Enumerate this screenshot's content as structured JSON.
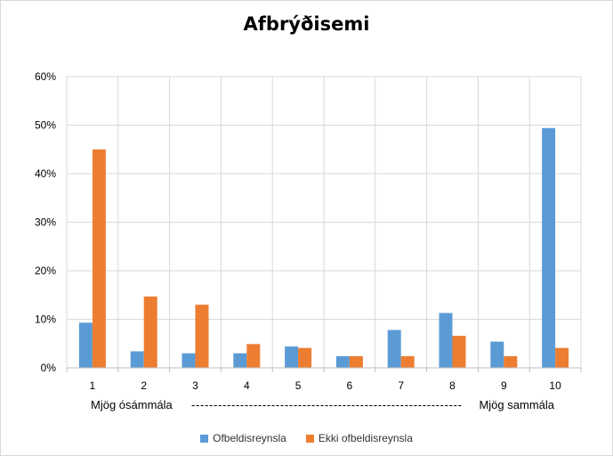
{
  "chart_data": {
    "type": "bar",
    "title": "Afbrýðisemi",
    "categories": [
      "1",
      "2",
      "3",
      "4",
      "5",
      "6",
      "7",
      "8",
      "9",
      "10"
    ],
    "series": [
      {
        "name": "Ofbeldisreynsla",
        "color": "#5b9bd5",
        "values": [
          9.3,
          3.4,
          3.0,
          3.0,
          4.4,
          2.4,
          7.8,
          11.3,
          5.4,
          49.4
        ]
      },
      {
        "name": "Ekki ofbeldisreynsla",
        "color": "#ed7d31",
        "values": [
          45.0,
          14.7,
          13.0,
          4.9,
          4.1,
          2.4,
          2.4,
          6.6,
          2.4,
          4.1
        ]
      }
    ],
    "ylim": [
      0,
      60
    ],
    "yticks": [
      "0%",
      "10%",
      "20%",
      "30%",
      "40%",
      "50%",
      "60%"
    ],
    "grid": true,
    "legend": "bottom-center",
    "scale_left_label": "Mjög ósámmála",
    "scale_right_label": "Mjög sammála",
    "scale_dashes": "-------------------------------------------------------------"
  }
}
